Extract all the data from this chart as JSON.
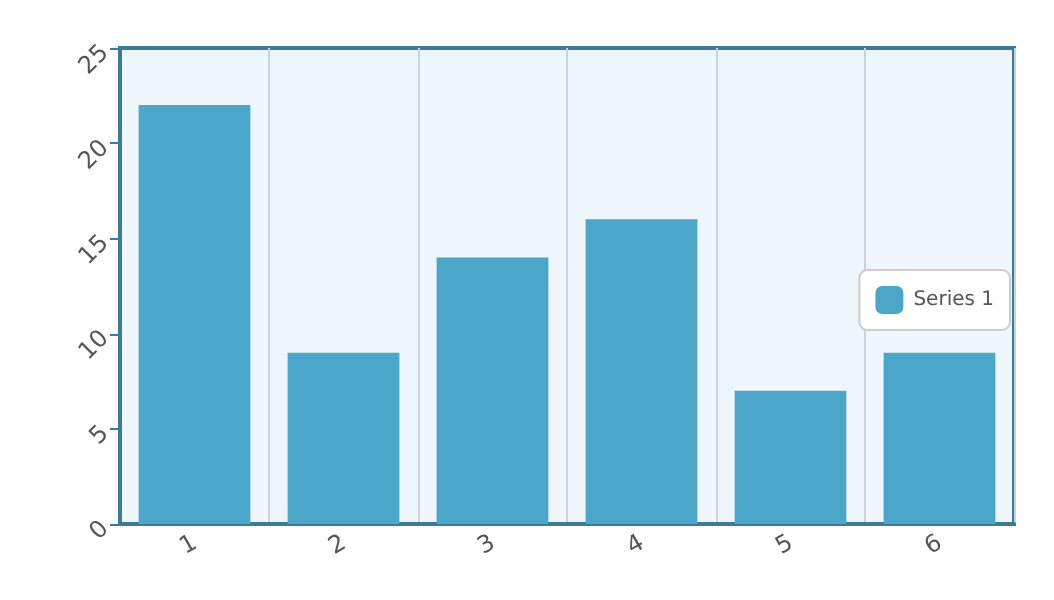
{
  "chart_data": {
    "type": "bar",
    "categories": [
      "1",
      "2",
      "3",
      "4",
      "5",
      "6"
    ],
    "series": [
      {
        "name": "Series 1",
        "color": "#4aa7c9",
        "values": [
          22,
          9,
          14,
          16,
          7,
          9
        ]
      }
    ],
    "ylim": [
      0,
      25
    ],
    "yticks": [
      0,
      5,
      10,
      15,
      20,
      25
    ],
    "grid": "x",
    "legend": "right"
  }
}
